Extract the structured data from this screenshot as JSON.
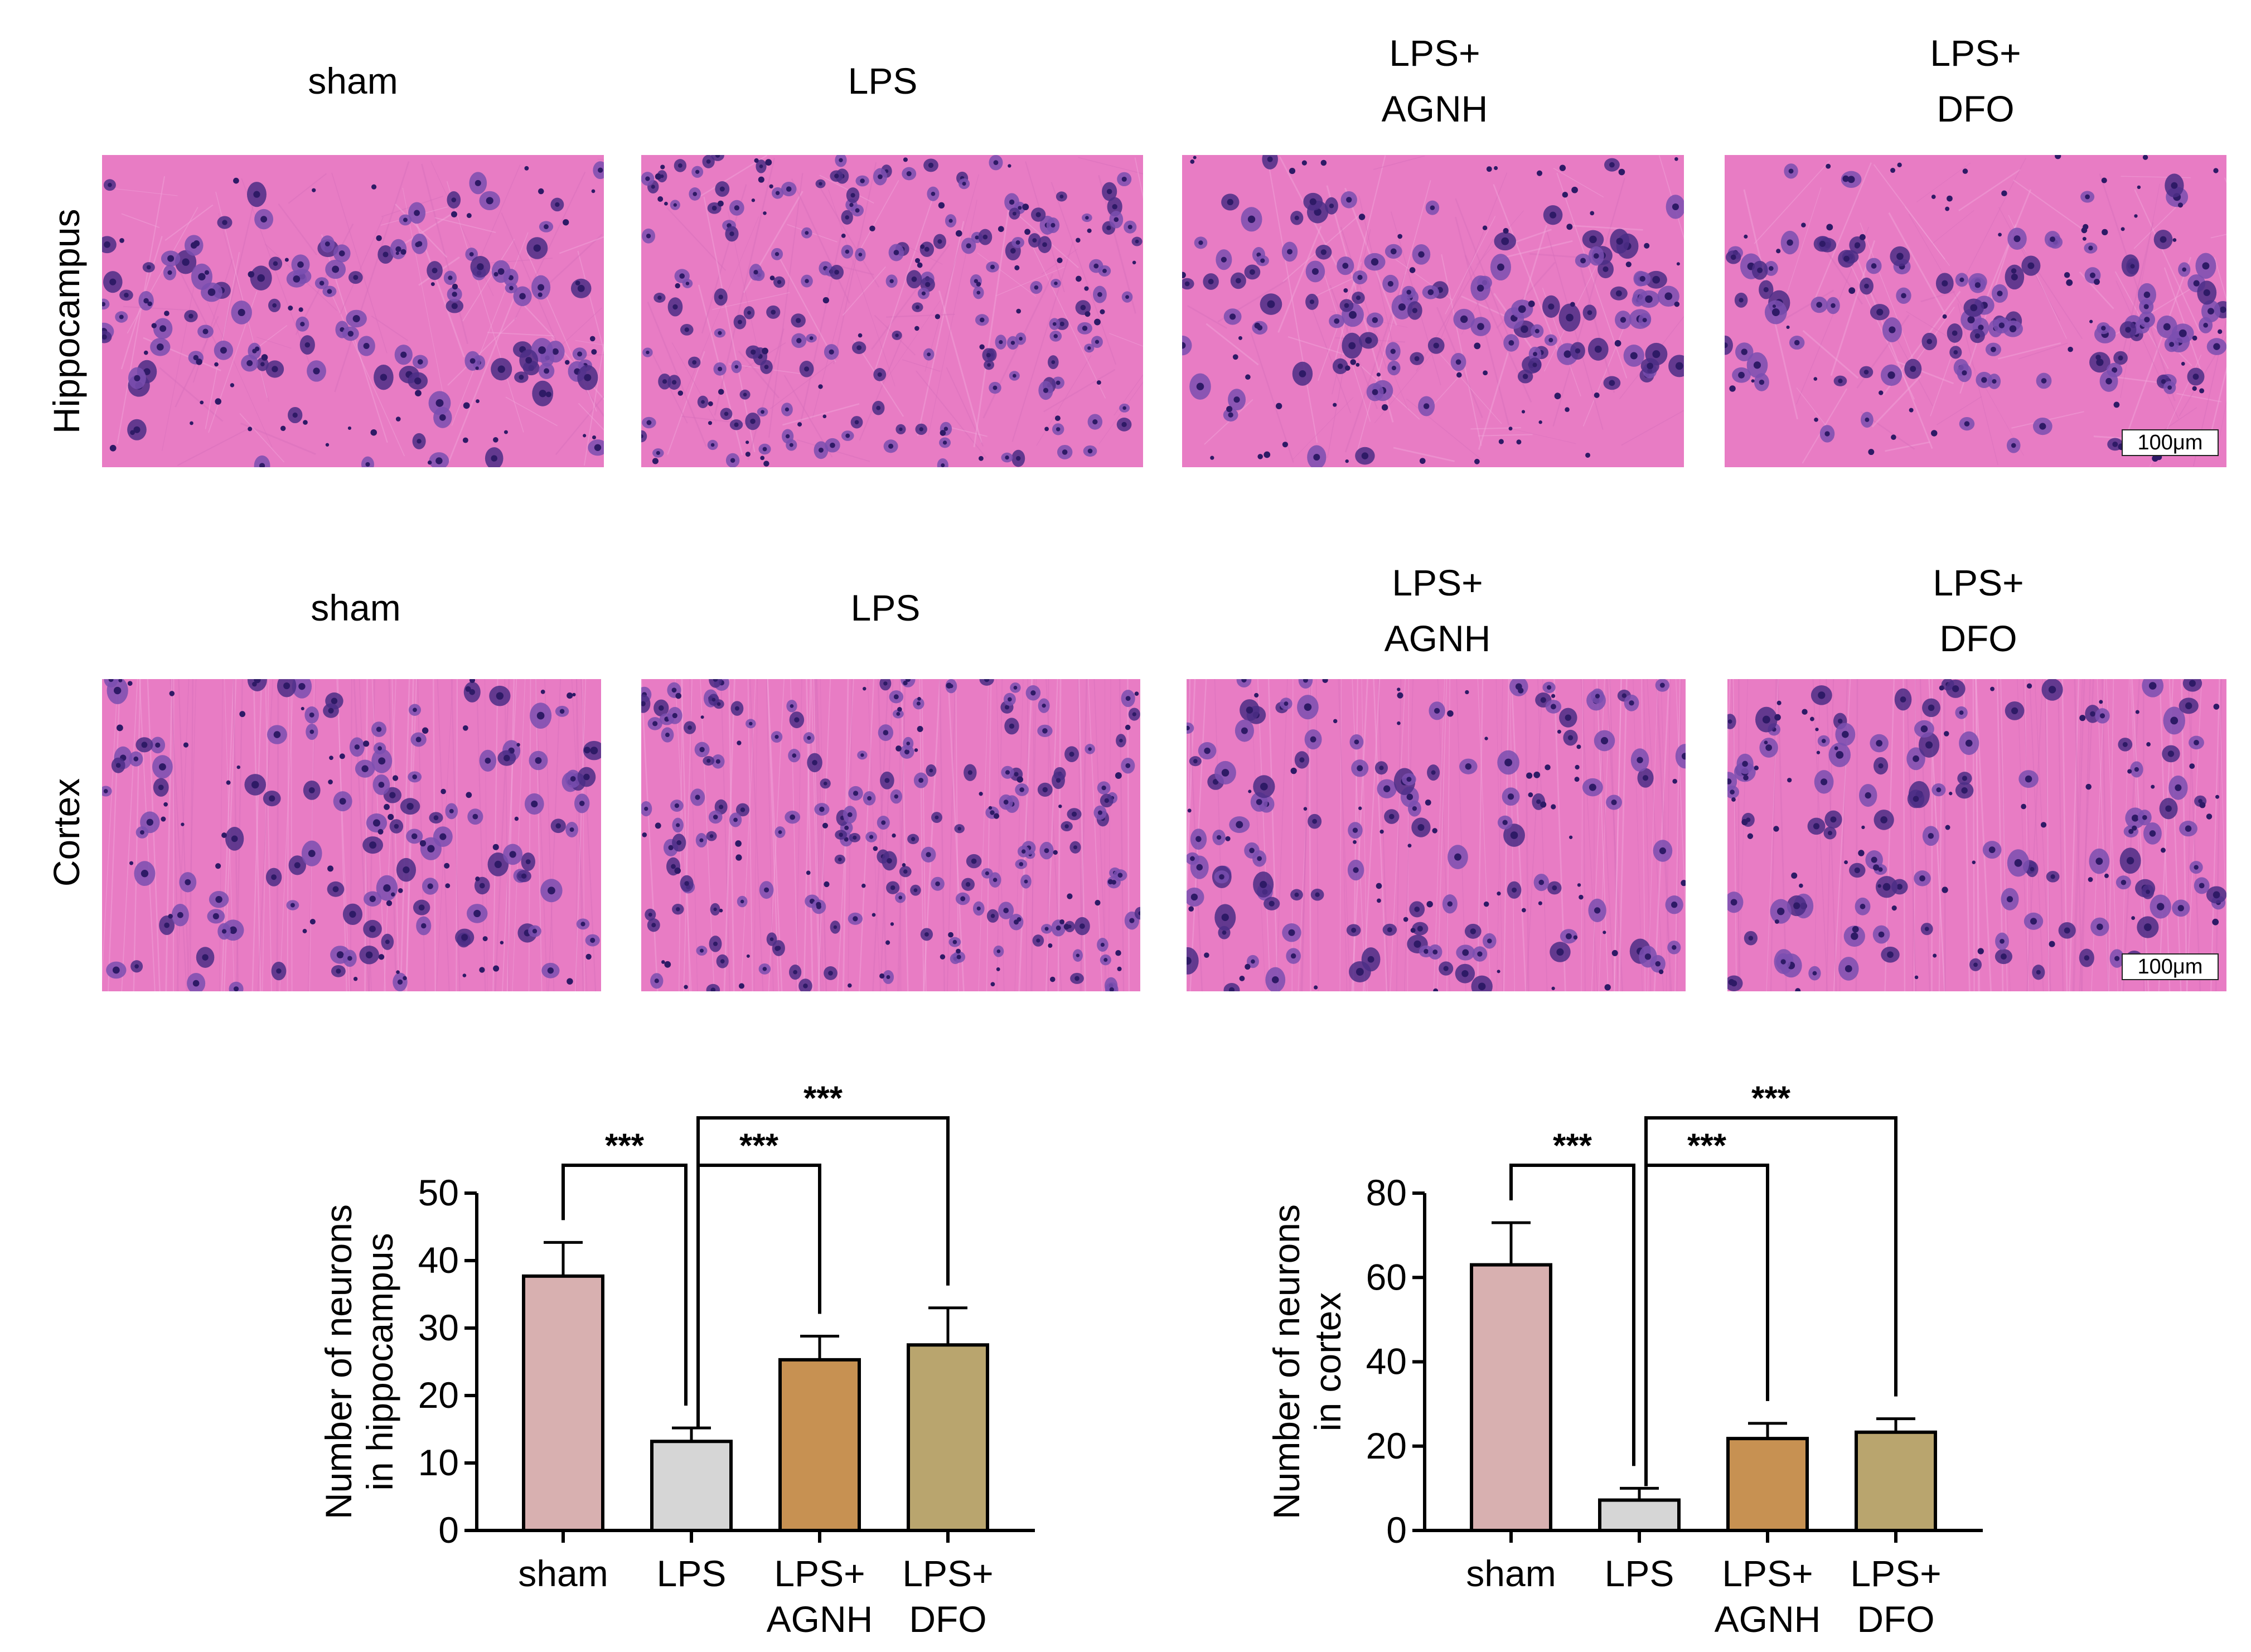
{
  "micrographs": {
    "columns": [
      {
        "label": "sham"
      },
      {
        "label": "LPS"
      },
      {
        "label": "LPS+\nAGNH"
      },
      {
        "label": "LPS+\nDFO"
      }
    ],
    "rows": [
      {
        "label": "Hippocampus",
        "scale_bar": "100μm"
      },
      {
        "label": "Cortex",
        "scale_bar": "100μm"
      }
    ],
    "colors": {
      "tissue": "#e87cc4",
      "tissue_band": "#d86fbc",
      "neuron": "#7a4fb0",
      "neuron_dark": "#4b2e86",
      "nucleus": "#2e1a66"
    }
  },
  "chart_data": [
    {
      "type": "bar",
      "categories": [
        "sham",
        "LPS",
        "LPS+\nAGNH",
        "LPS+\nDFO"
      ],
      "values": [
        37.7,
        13.2,
        25.3,
        27.5
      ],
      "errors": [
        5.0,
        2.0,
        3.5,
        5.5
      ],
      "colors": [
        "#d8b0b0",
        "#d6d6d6",
        "#c79152",
        "#b9a56e"
      ],
      "ylabel": "Number of neurons\nin hippocampus",
      "ylim": [
        0,
        50
      ],
      "yticks": [
        0,
        10,
        20,
        30,
        40,
        50
      ],
      "significance": [
        {
          "from": 0,
          "to": 1,
          "label": "***"
        },
        {
          "from": 1,
          "to": 2,
          "label": "***"
        },
        {
          "from": 1,
          "to": 3,
          "label": "***"
        }
      ]
    },
    {
      "type": "bar",
      "categories": [
        "sham",
        "LPS",
        "LPS+\nAGNH",
        "LPS+\nDFO"
      ],
      "values": [
        63,
        7.2,
        21.8,
        23.3
      ],
      "errors": [
        10,
        2.8,
        3.6,
        3.2
      ],
      "colors": [
        "#d8b0b0",
        "#d6d6d6",
        "#c79152",
        "#b9a56e"
      ],
      "ylabel": "Number of neurons\nin cortex",
      "ylim": [
        0,
        80
      ],
      "yticks": [
        0,
        20,
        40,
        60,
        80
      ],
      "significance": [
        {
          "from": 0,
          "to": 1,
          "label": "***"
        },
        {
          "from": 1,
          "to": 2,
          "label": "***"
        },
        {
          "from": 1,
          "to": 3,
          "label": "***"
        }
      ]
    }
  ]
}
